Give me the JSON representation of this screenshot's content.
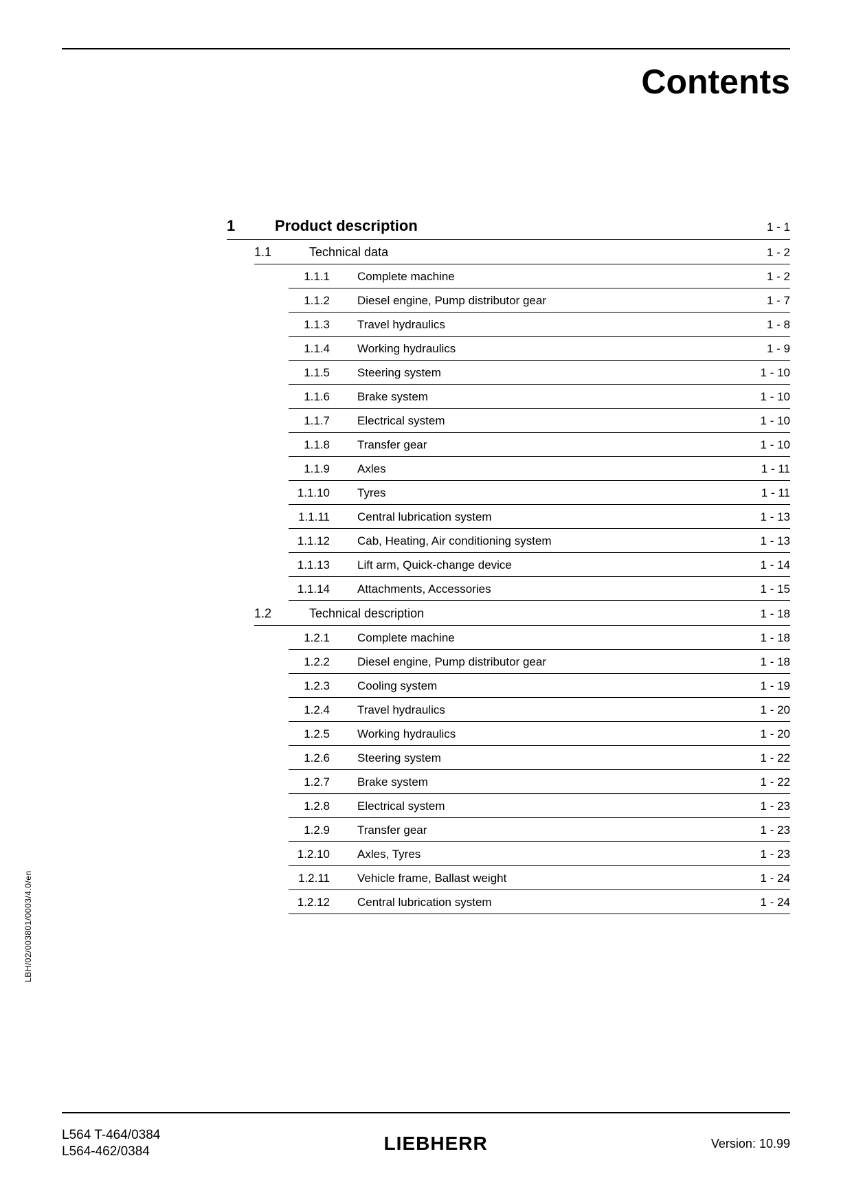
{
  "title": "Contents",
  "side_code": "LBH/02/003801/0003/4.0/en",
  "colors": {
    "text": "#000000",
    "background": "#ffffff",
    "rule": "#000000"
  },
  "typography": {
    "title_fontsize_pt": 38,
    "level1_fontsize_pt": 16,
    "level2_fontsize_pt": 13,
    "level3_fontsize_pt": 12,
    "footer_fontsize_pt": 14
  },
  "toc": [
    {
      "level": 1,
      "num": "1",
      "label": "Product description",
      "page": "1 - 1"
    },
    {
      "level": 2,
      "num": "1.1",
      "label": "Technical data",
      "page": "1 - 2"
    },
    {
      "level": 3,
      "num": "1.1.1",
      "label": "Complete machine",
      "page": "1 - 2"
    },
    {
      "level": 3,
      "num": "1.1.2",
      "label": "Diesel engine, Pump distributor gear",
      "page": "1 - 7"
    },
    {
      "level": 3,
      "num": "1.1.3",
      "label": "Travel hydraulics",
      "page": "1 - 8"
    },
    {
      "level": 3,
      "num": "1.1.4",
      "label": "Working hydraulics",
      "page": "1 - 9"
    },
    {
      "level": 3,
      "num": "1.1.5",
      "label": "Steering system",
      "page": "1 - 10"
    },
    {
      "level": 3,
      "num": "1.1.6",
      "label": "Brake system",
      "page": "1 - 10"
    },
    {
      "level": 3,
      "num": "1.1.7",
      "label": "Electrical system",
      "page": "1 - 10"
    },
    {
      "level": 3,
      "num": "1.1.8",
      "label": "Transfer gear",
      "page": "1 - 10"
    },
    {
      "level": 3,
      "num": "1.1.9",
      "label": "Axles",
      "page": "1 - 11"
    },
    {
      "level": 3,
      "num": "1.1.10",
      "label": "Tyres",
      "page": "1 - 11"
    },
    {
      "level": 3,
      "num": "1.1.11",
      "label": "Central lubrication system",
      "page": "1 - 13"
    },
    {
      "level": 3,
      "num": "1.1.12",
      "label": "Cab, Heating, Air conditioning system",
      "page": "1 - 13"
    },
    {
      "level": 3,
      "num": "1.1.13",
      "label": "Lift arm, Quick-change device",
      "page": "1 - 14"
    },
    {
      "level": 3,
      "num": "1.1.14",
      "label": "Attachments, Accessories",
      "page": "1 - 15"
    },
    {
      "level": 2,
      "num": "1.2",
      "label": "Technical description",
      "page": "1 - 18"
    },
    {
      "level": 3,
      "num": "1.2.1",
      "label": "Complete machine",
      "page": "1 - 18"
    },
    {
      "level": 3,
      "num": "1.2.2",
      "label": "Diesel engine, Pump distributor gear",
      "page": "1 - 18"
    },
    {
      "level": 3,
      "num": "1.2.3",
      "label": "Cooling system",
      "page": "1 - 19"
    },
    {
      "level": 3,
      "num": "1.2.4",
      "label": "Travel hydraulics",
      "page": "1 - 20"
    },
    {
      "level": 3,
      "num": "1.2.5",
      "label": "Working hydraulics",
      "page": "1 - 20"
    },
    {
      "level": 3,
      "num": "1.2.6",
      "label": "Steering system",
      "page": "1 - 22"
    },
    {
      "level": 3,
      "num": "1.2.7",
      "label": "Brake system",
      "page": "1 - 22"
    },
    {
      "level": 3,
      "num": "1.2.8",
      "label": "Electrical system",
      "page": "1 - 23"
    },
    {
      "level": 3,
      "num": "1.2.9",
      "label": "Transfer gear",
      "page": "1 - 23"
    },
    {
      "level": 3,
      "num": "1.2.10",
      "label": "Axles, Tyres",
      "page": "1 - 23"
    },
    {
      "level": 3,
      "num": "1.2.11",
      "label": "Vehicle frame, Ballast weight",
      "page": "1 - 24"
    },
    {
      "level": 3,
      "num": "1.2.12",
      "label": "Central lubrication system",
      "page": "1 - 24"
    }
  ],
  "footer": {
    "left_line1": "L564 T-464/0384",
    "left_line2": "L564-462/0384",
    "center_brand": "LIEBHERR",
    "right": "Version: 10.99"
  }
}
